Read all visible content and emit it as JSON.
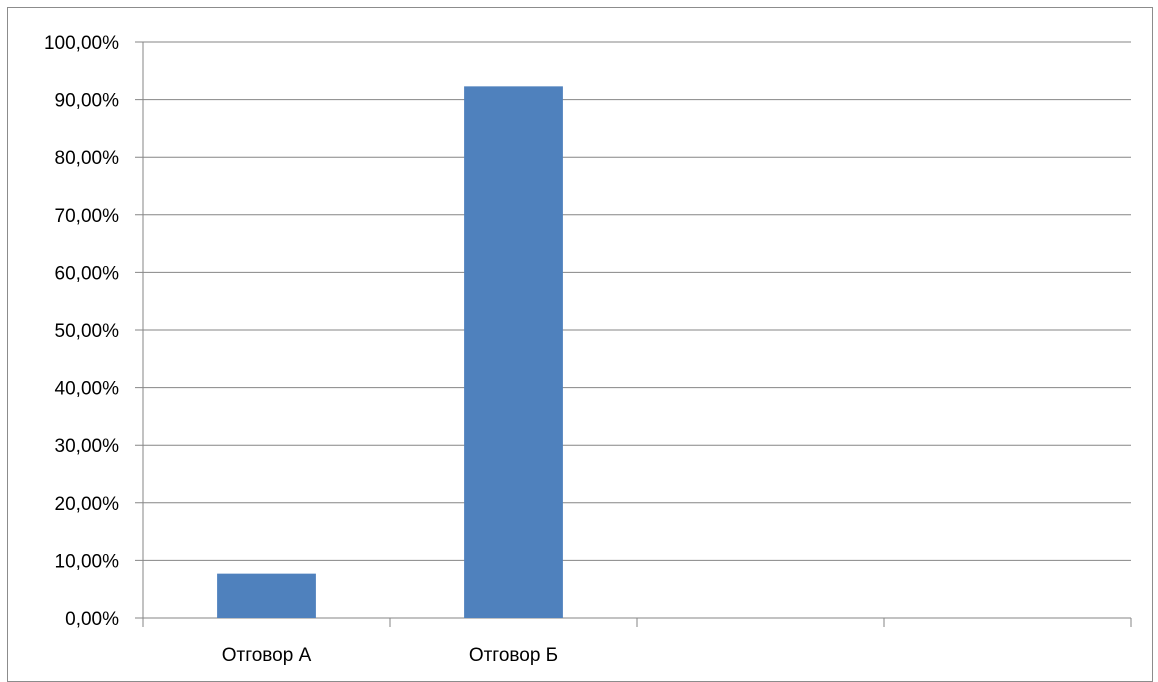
{
  "chart_data": {
    "type": "bar",
    "categories": [
      "Отговор А",
      "Отговор Б",
      "",
      ""
    ],
    "values": [
      7.7,
      92.3,
      null,
      null
    ],
    "title": "",
    "xlabel": "",
    "ylabel": "",
    "ylim": [
      0,
      100
    ],
    "ytick_values": [
      0,
      10,
      20,
      30,
      40,
      50,
      60,
      70,
      80,
      90,
      100
    ],
    "ytick_labels": [
      "0,00%",
      "10,00%",
      "20,00%",
      "30,00%",
      "40,00%",
      "50,00%",
      "60,00%",
      "70,00%",
      "80,00%",
      "90,00%",
      "100,00%"
    ],
    "grid": true,
    "legend": "none",
    "bar_color": "#4f81bd",
    "grid_color": "#868686"
  }
}
